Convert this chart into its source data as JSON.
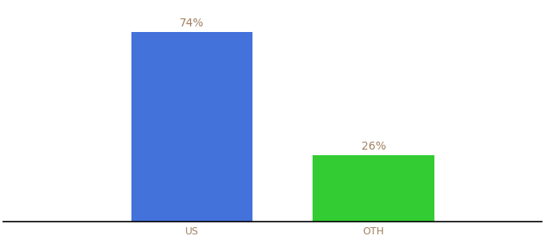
{
  "categories": [
    "US",
    "OTH"
  ],
  "values": [
    74,
    26
  ],
  "bar_colors": [
    "#4472db",
    "#33cc33"
  ],
  "label_color": "#a08060",
  "tick_label_color": "#a08060",
  "label_fontsize": 10,
  "xlabel_fontsize": 9,
  "background_color": "#ffffff",
  "ylim": [
    0,
    85
  ],
  "bar_width": 0.18,
  "x_positions": [
    0.38,
    0.65
  ],
  "xlim": [
    0.1,
    0.9
  ],
  "label_format": [
    "74%",
    "26%"
  ]
}
